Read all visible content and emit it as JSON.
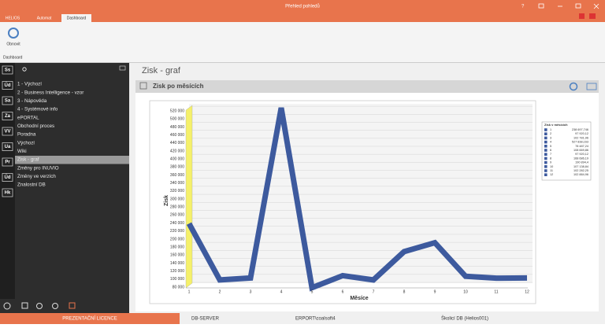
{
  "window": {
    "title": "Přehled pohledů",
    "tabs": [
      "HELIOS",
      "Automat",
      "Dashboard"
    ]
  },
  "ribbon": {
    "button": "Obnovit",
    "group": "Dashboard"
  },
  "sidebar": {
    "modules": [
      "Ss",
      "Úd",
      "Sa",
      "Za",
      "VV",
      "Ua",
      "Pr",
      "Úd",
      "Hk"
    ],
    "items": [
      "1 - Výchozí",
      "2 - Business Intelligence - vzor",
      "3 - Nápověda",
      "4 - Systémové info",
      "ePORTAL",
      "Obchodní proces",
      "Poradna",
      "Výchozí",
      "Wiki",
      "Zisk - graf",
      "Změny pro INUVIO",
      "Změny ve verzích",
      "Znalostní DB"
    ]
  },
  "page": {
    "title": "Zisk - graf",
    "panel_title": "Zisk po měsících"
  },
  "chart_data": {
    "type": "line",
    "y_label": "Zisk",
    "x_label": "Měsíce",
    "legend_title": "Zisk v měsících",
    "categories": [
      "1",
      "2",
      "3",
      "4",
      "5",
      "6",
      "7",
      "8",
      "9",
      "10",
      "11",
      "12"
    ],
    "values": [
      238697.746,
      97920.12,
      102781.96,
      527838.163,
      78487.24,
      108669.86,
      97920.12,
      168686.19,
      190894.4,
      107138.84,
      102282.25,
      102884.96
    ],
    "value_labels": [
      "238 697,746",
      "97 920,12",
      "102 781,96",
      "527 838,163",
      "78 487,24",
      "108 669,86",
      "97 920,12",
      "168 686,19",
      "190 894,4",
      "107 138,84",
      "102 282,25",
      "102 884,96"
    ],
    "color": "#3d5a9e",
    "ylim": [
      80000,
      530000
    ],
    "yticks": [
      {
        "value": 80000,
        "label": "80 000"
      },
      {
        "value": 100000,
        "label": "100 000"
      },
      {
        "value": 120000,
        "label": "120 000"
      },
      {
        "value": 140000,
        "label": "140 000"
      },
      {
        "value": 160000,
        "label": "160 000"
      },
      {
        "value": 180000,
        "label": "180 000"
      },
      {
        "value": 200000,
        "label": "200 000"
      },
      {
        "value": 220000,
        "label": "220 000"
      },
      {
        "value": 240000,
        "label": "240 000"
      },
      {
        "value": 260000,
        "label": "260 000"
      },
      {
        "value": 280000,
        "label": "280 000"
      },
      {
        "value": 300000,
        "label": "300 000"
      },
      {
        "value": 320000,
        "label": "320 000"
      },
      {
        "value": 340000,
        "label": "340 000"
      },
      {
        "value": 360000,
        "label": "360 000"
      },
      {
        "value": 380000,
        "label": "380 000"
      },
      {
        "value": 400000,
        "label": "400 000"
      },
      {
        "value": 420000,
        "label": "420 000"
      },
      {
        "value": 440000,
        "label": "440 000"
      },
      {
        "value": 460000,
        "label": "460 000"
      },
      {
        "value": 480000,
        "label": "480 000"
      },
      {
        "value": 500000,
        "label": "500 000"
      },
      {
        "value": 520000,
        "label": "520 000"
      }
    ],
    "grid": true
  },
  "status": {
    "license": "PREZENTAČNÍ LICENCE",
    "server": "DB-SERVER",
    "user": "ERPORT\\coalsoft4",
    "database": "Školicí DB (Helios001)"
  }
}
